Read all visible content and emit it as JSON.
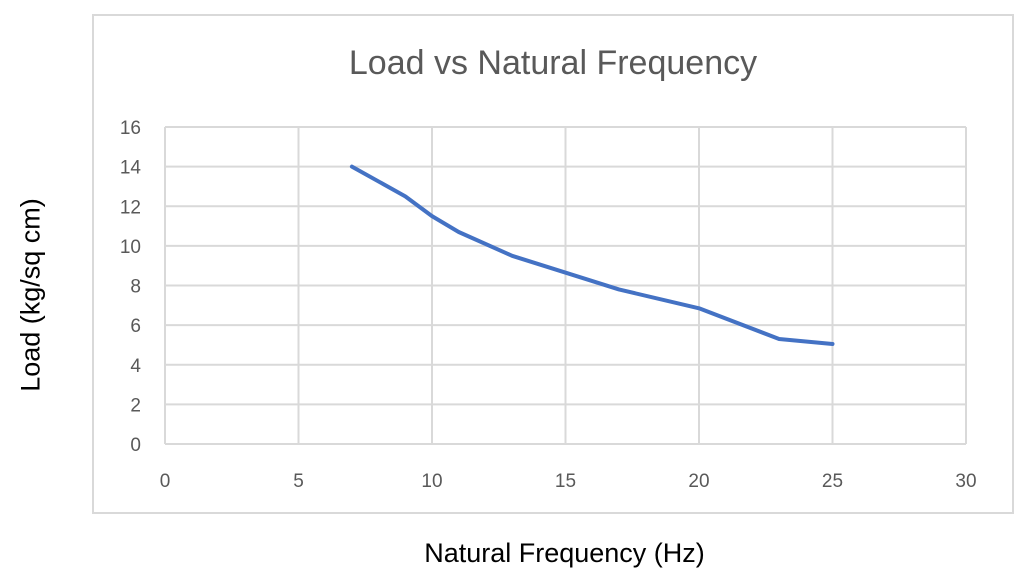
{
  "chart_data": {
    "type": "line",
    "title": "Load vs Natural Frequency",
    "xlabel": "Natural Frequency (Hz)",
    "ylabel": "Load (kg/sq cm)",
    "xlim": [
      0,
      30
    ],
    "ylim": [
      0,
      16
    ],
    "xticks": [
      0,
      5,
      10,
      15,
      20,
      25,
      30
    ],
    "yticks": [
      0,
      2,
      4,
      6,
      8,
      10,
      12,
      14,
      16
    ],
    "grid": true,
    "legend": "none",
    "series": [
      {
        "name": "Load",
        "color": "#4472c4",
        "x": [
          7,
          9,
          10,
          11,
          13,
          17,
          20,
          23,
          25
        ],
        "y": [
          14,
          12.5,
          11.5,
          10.7,
          9.5,
          7.8,
          6.85,
          5.3,
          5.05
        ]
      }
    ]
  }
}
